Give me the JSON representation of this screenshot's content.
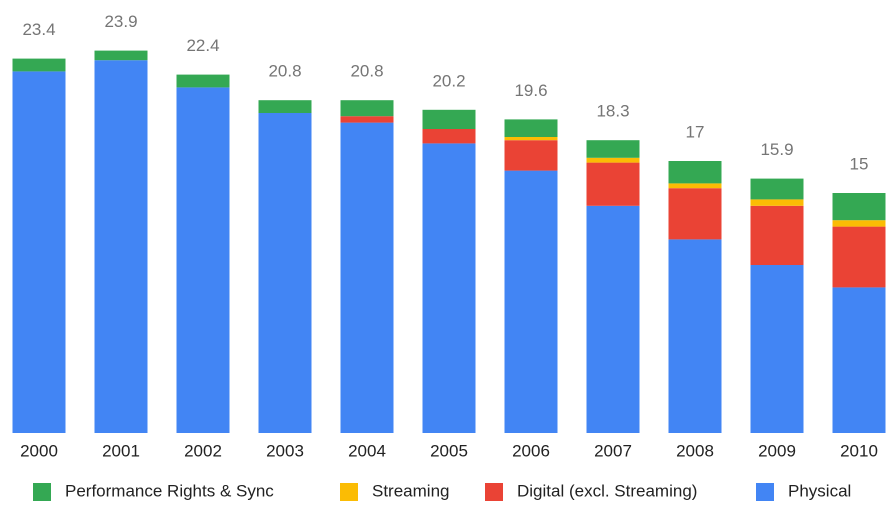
{
  "chart_data": {
    "type": "stacked-bar",
    "categories": [
      "2000",
      "2001",
      "2002",
      "2003",
      "2004",
      "2005",
      "2006",
      "2007",
      "2008",
      "2009",
      "2010"
    ],
    "totals": [
      23.4,
      23.9,
      22.4,
      20.8,
      20.8,
      20.2,
      19.6,
      18.3,
      17,
      15.9,
      15
    ],
    "series": [
      {
        "name": "Performance Rights & Sync",
        "color": "#34a853",
        "values": [
          0.8,
          0.6,
          0.8,
          0.8,
          1.0,
          1.2,
          1.1,
          1.1,
          1.4,
          1.3,
          1.7
        ]
      },
      {
        "name": "Streaming",
        "color": "#fbbc04",
        "values": [
          0,
          0,
          0,
          0,
          0,
          0,
          0.2,
          0.3,
          0.3,
          0.4,
          0.4
        ]
      },
      {
        "name": "Digital (excl. Streaming)",
        "color": "#ea4335",
        "values": [
          0,
          0,
          0,
          0,
          0.4,
          0.9,
          1.9,
          2.7,
          3.2,
          3.7,
          3.8
        ]
      },
      {
        "name": "Physical",
        "color": "#4285f4",
        "values": [
          22.6,
          23.3,
          21.6,
          20.0,
          19.4,
          18.1,
          16.4,
          14.2,
          12.1,
          10.5,
          9.1
        ]
      }
    ],
    "ylim": [
      0,
      25
    ],
    "legend": "bottom"
  }
}
